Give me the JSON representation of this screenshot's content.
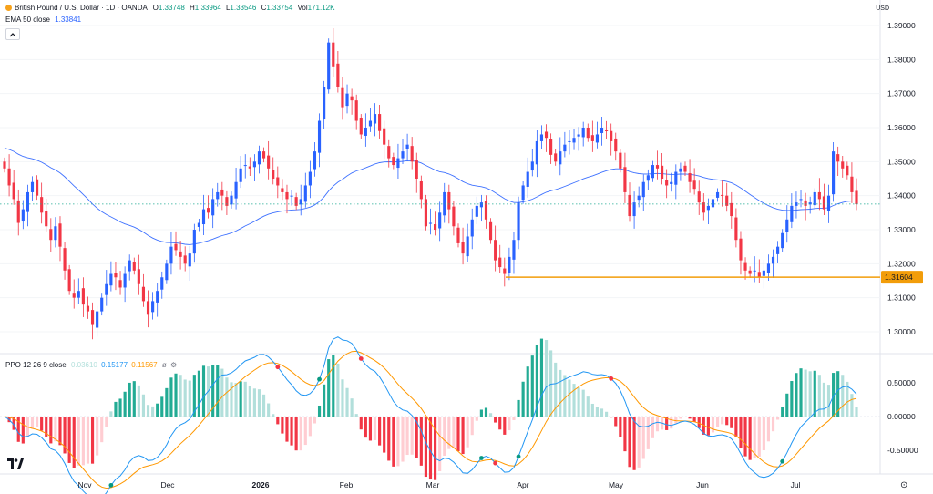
{
  "header": {
    "symbol": "British Pound / U.S. Dollar · 1D · OANDA",
    "o_label": "O",
    "o_value": "1.33748",
    "h_label": "H",
    "h_value": "1.33964",
    "l_label": "L",
    "l_value": "1.33546",
    "c_label": "C",
    "c_value": "1.33754",
    "vol_label": "Vol",
    "vol_value": "171.12K",
    "ema_label": "EMA 50 close",
    "ema_value": "1.33841",
    "currency": "USD"
  },
  "indicator": {
    "label": "PPO 12 26 9 close",
    "v1": "0.03610",
    "v2": "0.15177",
    "v3": "0.11567",
    "icon": "eye-slash-icon"
  },
  "colors": {
    "up": "#2962ff",
    "down": "#f23645",
    "ema": "#2962ff",
    "support": "#f29d0a",
    "ppo": "#2196f3",
    "signal": "#ff9800",
    "hist_up": "#22ab94",
    "hist_down": "#f23645"
  },
  "chart_data": [
    {
      "type": "candlestick",
      "x_ticks": [
        "Nov",
        "Dec",
        "2026",
        "Feb",
        "Mar",
        "Apr",
        "May",
        "Jun",
        "Jul"
      ],
      "y_ticks": [
        "1.39000",
        "1.38000",
        "1.37000",
        "1.36000",
        "1.35000",
        "1.34000",
        "1.33000",
        "1.32000",
        "1.31000",
        "1.30000"
      ],
      "ylim": [
        1.298,
        1.392
      ],
      "support_level": 1.31604,
      "support_label": "1.31604",
      "last_price": 1.33754,
      "close": [
        1.348,
        1.343,
        1.339,
        1.332,
        1.336,
        1.341,
        1.344,
        1.34,
        1.335,
        1.331,
        1.327,
        1.331,
        1.325,
        1.318,
        1.312,
        1.31,
        1.312,
        1.308,
        1.306,
        1.302,
        1.306,
        1.31,
        1.314,
        1.317,
        1.316,
        1.313,
        1.317,
        1.321,
        1.318,
        1.314,
        1.309,
        1.305,
        1.309,
        1.312,
        1.316,
        1.32,
        1.325,
        1.324,
        1.322,
        1.32,
        1.323,
        1.33,
        1.332,
        1.336,
        1.335,
        1.339,
        1.341,
        1.34,
        1.337,
        1.34,
        1.344,
        1.348,
        1.349,
        1.348,
        1.35,
        1.353,
        1.351,
        1.348,
        1.345,
        1.343,
        1.341,
        1.339,
        1.34,
        1.337,
        1.339,
        1.343,
        1.347,
        1.353,
        1.362,
        1.372,
        1.385,
        1.378,
        1.372,
        1.366,
        1.37,
        1.368,
        1.362,
        1.358,
        1.36,
        1.362,
        1.364,
        1.359,
        1.355,
        1.351,
        1.349,
        1.351,
        1.353,
        1.355,
        1.35,
        1.345,
        1.339,
        1.331,
        1.332,
        1.33,
        1.335,
        1.341,
        1.336,
        1.331,
        1.326,
        1.323,
        1.328,
        1.333,
        1.337,
        1.338,
        1.333,
        1.327,
        1.321,
        1.319,
        1.317,
        1.322,
        1.327,
        1.338,
        1.343,
        1.347,
        1.35,
        1.356,
        1.358,
        1.357,
        1.352,
        1.35,
        1.353,
        1.355,
        1.356,
        1.357,
        1.358,
        1.36,
        1.357,
        1.356,
        1.358,
        1.36,
        1.359,
        1.356,
        1.353,
        1.348,
        1.341,
        1.334,
        1.338,
        1.34,
        1.344,
        1.346,
        1.349,
        1.348,
        1.345,
        1.343,
        1.344,
        1.347,
        1.348,
        1.347,
        1.344,
        1.342,
        1.338,
        1.335,
        1.337,
        1.339,
        1.341,
        1.34,
        1.337,
        1.334,
        1.327,
        1.321,
        1.318,
        1.317,
        1.318,
        1.316,
        1.318,
        1.32,
        1.322,
        1.325,
        1.329,
        1.333,
        1.337,
        1.338,
        1.339,
        1.337,
        1.338,
        1.341,
        1.339,
        1.336,
        1.34,
        1.353,
        1.35,
        1.348,
        1.346,
        1.341,
        1.3375
      ]
    },
    {
      "type": "line",
      "name": "PPO 12 26 9 close",
      "y_ticks": [
        "0.50000",
        "0.00000",
        "-0.50000"
      ],
      "ylim": [
        -0.78,
        0.78
      ]
    }
  ]
}
